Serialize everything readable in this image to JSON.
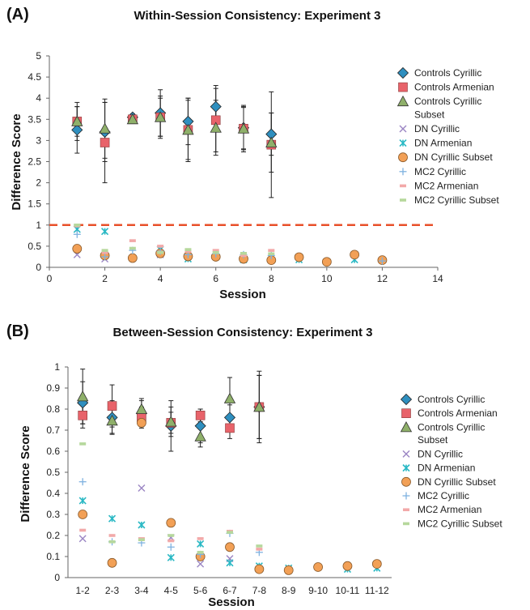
{
  "panels": [
    {
      "panel_label": "(A)",
      "title": "Within-Session Consistency: Experiment 3",
      "xlabel": "Session",
      "ylabel": "Difference Score"
    },
    {
      "panel_label": "(B)",
      "title": "Between-Session Consistency: Experiment 3",
      "xlabel": "Session",
      "ylabel": "Difference Score"
    }
  ],
  "chart_data": [
    {
      "type": "scatter",
      "title": "Within-Session Consistency: Experiment 3",
      "xlabel": "Session",
      "ylabel": "Difference Score",
      "xlim": [
        0,
        14
      ],
      "ylim": [
        0,
        5
      ],
      "xticks": [
        "0",
        "2",
        "4",
        "6",
        "8",
        "10",
        "12",
        "14"
      ],
      "xtick_values": [
        0,
        2,
        4,
        6,
        8,
        10,
        12,
        14
      ],
      "yticks": [
        "0",
        "0.5",
        "1",
        "1.5",
        "2",
        "2.5",
        "3",
        "3.5",
        "4",
        "4.5",
        "5"
      ],
      "ytick_values": [
        0,
        0.5,
        1,
        1.5,
        2,
        2.5,
        3,
        3.5,
        4,
        4.5,
        5
      ],
      "grid": false,
      "legend_position": "right",
      "reference_line": {
        "y": 1,
        "color": "#e8502a",
        "style": "dashed"
      },
      "series": [
        {
          "name": "Controls Cyrillic",
          "marker": "diamond",
          "color": "#2f8fbf",
          "x": [
            1,
            2,
            3,
            4,
            5,
            6,
            7,
            8
          ],
          "y": [
            3.25,
            3.2,
            3.55,
            3.65,
            3.45,
            3.8,
            3.3,
            3.15
          ],
          "err": [
            0.55,
            0.7,
            0.08,
            0.55,
            0.55,
            0.5,
            0.5,
            0.5
          ]
        },
        {
          "name": "Controls Armenian",
          "marker": "square",
          "color": "#e8636a",
          "x": [
            1,
            2,
            3,
            4,
            5,
            6,
            7,
            8
          ],
          "y": [
            3.45,
            2.95,
            3.5,
            3.55,
            3.25,
            3.48,
            3.28,
            2.9
          ],
          "err": [
            0.45,
            0.95,
            0.08,
            0.5,
            0.75,
            0.75,
            0.55,
            1.25
          ]
        },
        {
          "name": "Controls Cyrillic Subset",
          "marker": "triangle",
          "color": "#8fb06a",
          "x": [
            1,
            2,
            3,
            4,
            5,
            6,
            7,
            8
          ],
          "y": [
            3.45,
            3.28,
            3.5,
            3.55,
            3.25,
            3.3,
            3.28,
            2.95
          ],
          "err": [
            0.35,
            0.7,
            0.08,
            0.45,
            0.7,
            0.65,
            0.5,
            0.7
          ]
        },
        {
          "name": "DN Cyrillic",
          "marker": "x",
          "color": "#9b86c4",
          "x": [
            1,
            2,
            4
          ],
          "y": [
            0.3,
            0.2,
            0.3
          ]
        },
        {
          "name": "DN Armenian",
          "marker": "asterisk",
          "color": "#29b8c4",
          "x": [
            1,
            2,
            4,
            5,
            7,
            9,
            11
          ],
          "y": [
            0.9,
            0.85,
            0.42,
            0.2,
            0.18,
            0.18,
            0.18
          ]
        },
        {
          "name": "DN Cyrillic Subset",
          "marker": "circle",
          "color": "#f2a056",
          "x": [
            1,
            2,
            3,
            4,
            5,
            6,
            7,
            8,
            9,
            10,
            11,
            12
          ],
          "y": [
            0.44,
            0.28,
            0.22,
            0.33,
            0.26,
            0.25,
            0.2,
            0.17,
            0.24,
            0.13,
            0.3,
            0.17
          ]
        },
        {
          "name": "MC2 Cyrillic",
          "marker": "plus",
          "color": "#7fb2e0",
          "x": [
            1,
            2,
            3,
            4,
            5,
            6,
            7,
            8,
            12
          ],
          "y": [
            0.78,
            0.25,
            0.4,
            0.38,
            0.3,
            0.32,
            0.3,
            0.28,
            0.15
          ]
        },
        {
          "name": "MC2 Armenian",
          "marker": "dash",
          "color": "#f2a9a9",
          "x": [
            1,
            2,
            3,
            4,
            5,
            6,
            7,
            8
          ],
          "y": [
            0.98,
            0.35,
            0.63,
            0.5,
            0.38,
            0.4,
            0.28,
            0.4
          ]
        },
        {
          "name": "MC2 Cyrillic Subset",
          "marker": "dash",
          "color": "#b6d89c",
          "x": [
            1,
            2,
            3,
            4,
            5,
            6,
            7,
            8
          ],
          "y": [
            1.0,
            0.4,
            0.45,
            0.35,
            0.42,
            0.35,
            0.33,
            0.32
          ]
        }
      ]
    },
    {
      "type": "scatter",
      "title": "Between-Session Consistency: Experiment 3",
      "xlabel": "Session",
      "ylabel": "Difference Score",
      "categories": [
        "1-2",
        "2-3",
        "3-4",
        "4-5",
        "5-6",
        "6-7",
        "7-8",
        "8-9",
        "9-10",
        "10-11",
        "11-12"
      ],
      "ylim": [
        0,
        1
      ],
      "yticks": [
        "0",
        "0.1",
        "0.2",
        "0.3",
        "0.4",
        "0.5",
        "0.6",
        "0.7",
        "0.8",
        "0.9",
        "1"
      ],
      "ytick_values": [
        0,
        0.1,
        0.2,
        0.3,
        0.4,
        0.5,
        0.6,
        0.7,
        0.8,
        0.9,
        1
      ],
      "grid": false,
      "legend_position": "right",
      "series": [
        {
          "name": "Controls Cyrillic",
          "marker": "diamond",
          "color": "#2f8fbf",
          "x": [
            1,
            2,
            3,
            4,
            5,
            6,
            7
          ],
          "y": [
            0.83,
            0.76,
            0.78,
            0.72,
            0.72,
            0.76,
            0.81
          ],
          "err": [
            0.1,
            0.08,
            0.06,
            0.12,
            0.08,
            0.06,
            0.15
          ]
        },
        {
          "name": "Controls Armenian",
          "marker": "square",
          "color": "#e8636a",
          "x": [
            1,
            2,
            3,
            4,
            5,
            6,
            7
          ],
          "y": [
            0.77,
            0.815,
            0.76,
            0.735,
            0.77,
            0.71,
            0.81
          ],
          "err": [
            0.06,
            0.1,
            0.05,
            0.05,
            0.03,
            0.05,
            0.17
          ]
        },
        {
          "name": "Controls Cyrillic Subset",
          "marker": "triangle",
          "color": "#8fb06a",
          "x": [
            1,
            2,
            3,
            4,
            5,
            6,
            7
          ],
          "y": [
            0.86,
            0.745,
            0.8,
            0.74,
            0.67,
            0.85,
            0.81
          ],
          "err": [
            0.13,
            0.06,
            0.05,
            0.07,
            0.05,
            0.1,
            0.15
          ]
        },
        {
          "name": "DN Cyrillic",
          "marker": "x",
          "color": "#9b86c4",
          "x": [
            1,
            3,
            4,
            5,
            6
          ],
          "y": [
            0.185,
            0.425,
            0.19,
            0.065,
            0.09
          ]
        },
        {
          "name": "DN Armenian",
          "marker": "asterisk",
          "color": "#29b8c4",
          "x": [
            1,
            2,
            3,
            4,
            5,
            6,
            7,
            8,
            10,
            11
          ],
          "y": [
            0.365,
            0.28,
            0.25,
            0.095,
            0.16,
            0.07,
            0.055,
            0.045,
            0.04,
            0.045
          ]
        },
        {
          "name": "DN Cyrillic Subset",
          "marker": "circle",
          "color": "#f2a056",
          "x": [
            1,
            2,
            3,
            4,
            5,
            6,
            7,
            8,
            9,
            10,
            11
          ],
          "y": [
            0.3,
            0.07,
            0.735,
            0.26,
            0.1,
            0.145,
            0.04,
            0.035,
            0.05,
            0.055,
            0.065
          ]
        },
        {
          "name": "MC2 Cyrillic",
          "marker": "plus",
          "color": "#7fb2e0",
          "x": [
            1,
            2,
            3,
            4,
            5,
            6,
            7
          ],
          "y": [
            0.455,
            0.17,
            0.165,
            0.145,
            0.11,
            0.21,
            0.12
          ]
        },
        {
          "name": "MC2 Armenian",
          "marker": "dash",
          "color": "#f2a9a9",
          "x": [
            1,
            2,
            3,
            4,
            5,
            6,
            7
          ],
          "y": [
            0.225,
            0.2,
            0.185,
            0.175,
            0.185,
            0.22,
            0.135
          ]
        },
        {
          "name": "MC2 Cyrillic Subset",
          "marker": "dash",
          "color": "#b6d89c",
          "x": [
            1,
            2,
            3,
            4,
            5,
            6,
            7
          ],
          "y": [
            0.635,
            0.17,
            0.18,
            0.2,
            0.12,
            0.215,
            0.15
          ]
        }
      ]
    }
  ]
}
